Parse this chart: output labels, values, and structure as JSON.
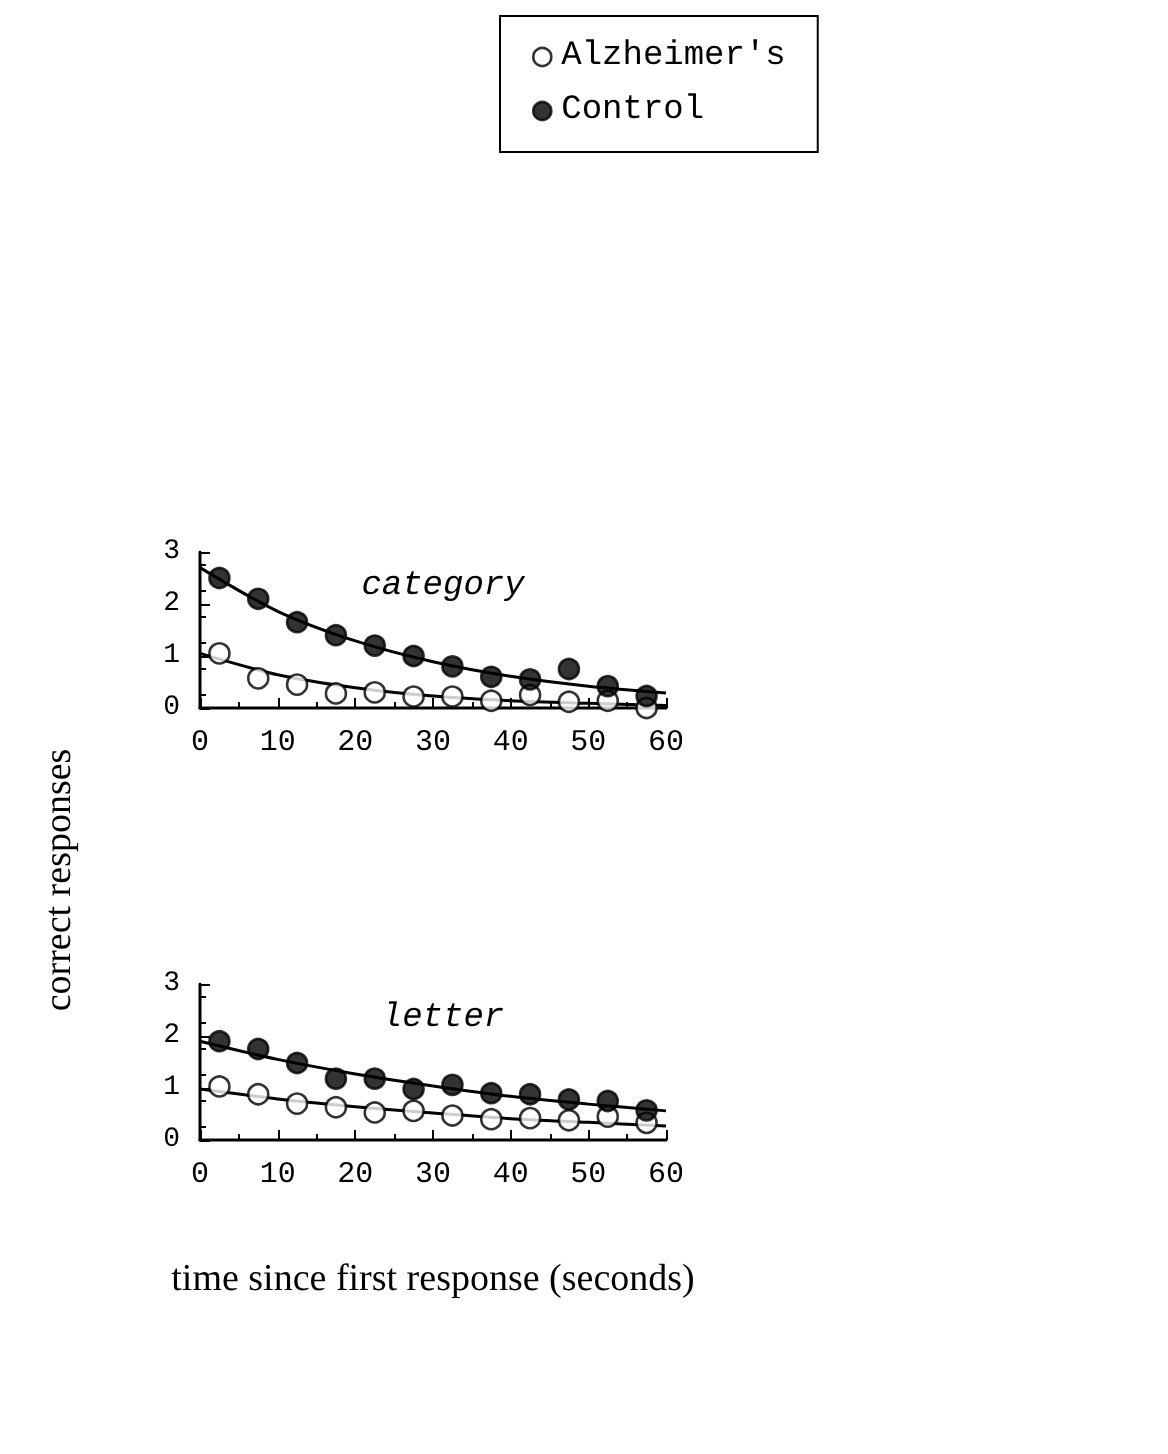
{
  "chart_data": [
    {
      "type": "scatter",
      "title": "category",
      "ylabel": "correct responses",
      "x": [
        2.5,
        7.5,
        12.5,
        17.5,
        22.5,
        27.5,
        32.5,
        37.5,
        42.5,
        47.5,
        52.5,
        57.5
      ],
      "xlim": [
        0,
        60
      ],
      "xticks": [
        0,
        10,
        20,
        30,
        40,
        50,
        60
      ],
      "ylim": [
        0,
        3
      ],
      "yticks": [
        0,
        1,
        2,
        3
      ],
      "legend": "top",
      "marker": "circle",
      "series": [
        {
          "name": "Alzheimer's",
          "color": "#ffffff",
          "values": [
            1.05,
            0.57,
            0.45,
            0.28,
            0.3,
            0.22,
            0.22,
            0.14,
            0.25,
            0.12,
            0.14,
            0.0
          ]
        },
        {
          "name": "Control",
          "color": "#000000",
          "values": [
            2.5,
            2.1,
            1.65,
            1.4,
            1.2,
            1.0,
            0.8,
            0.6,
            0.55,
            0.75,
            0.42,
            0.23
          ]
        },
        {
          "type": "line",
          "marker": "none",
          "color": "#000000",
          "x": [
            0,
            10,
            20,
            30,
            40,
            50,
            60
          ],
          "values": [
            1.05,
            0.64,
            0.39,
            0.23,
            0.14,
            0.09,
            0.05
          ]
        },
        {
          "type": "line",
          "marker": "none",
          "color": "#000000",
          "x": [
            0,
            10,
            20,
            30,
            40,
            50,
            60
          ],
          "values": [
            2.7,
            1.86,
            1.29,
            0.89,
            0.61,
            0.42,
            0.29
          ]
        }
      ]
    },
    {
      "type": "scatter",
      "title": "letter",
      "xlabel": "time since first response (seconds)",
      "x": [
        2.5,
        7.5,
        12.5,
        17.5,
        22.5,
        27.5,
        32.5,
        37.5,
        42.5,
        47.5,
        52.5,
        57.5
      ],
      "xlim": [
        0,
        60
      ],
      "xticks": [
        0,
        10,
        20,
        30,
        40,
        50,
        60
      ],
      "ylim": [
        0,
        3
      ],
      "yticks": [
        0,
        1,
        2,
        3
      ],
      "marker": "circle",
      "series": [
        {
          "color": "#ffffff",
          "values": [
            1.03,
            0.88,
            0.7,
            0.63,
            0.53,
            0.56,
            0.47,
            0.4,
            0.42,
            0.38,
            0.45,
            0.33
          ]
        },
        {
          "color": "#000000",
          "values": [
            1.9,
            1.75,
            1.48,
            1.18,
            1.18,
            0.98,
            1.06,
            0.9,
            0.88,
            0.78,
            0.75,
            0.57
          ]
        },
        {
          "type": "line",
          "marker": "none",
          "color": "#000000",
          "x": [
            0,
            10,
            20,
            30,
            40,
            50,
            60
          ],
          "values": [
            0.98,
            0.79,
            0.64,
            0.52,
            0.41,
            0.34,
            0.27
          ]
        },
        {
          "type": "line",
          "marker": "none",
          "color": "#000000",
          "x": [
            0,
            10,
            20,
            30,
            40,
            50,
            60
          ],
          "values": [
            1.9,
            1.55,
            1.27,
            1.04,
            0.84,
            0.69,
            0.56
          ]
        }
      ]
    }
  ]
}
